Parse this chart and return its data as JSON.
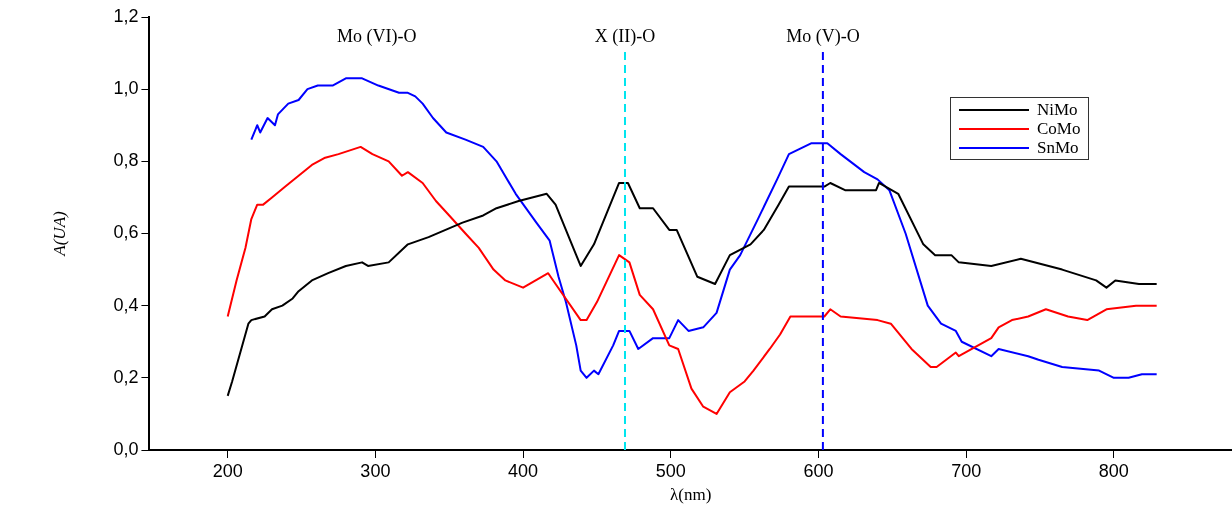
{
  "chart_data": {
    "type": "line",
    "xlabel": "λ(nm)",
    "ylabel": "A(UA)",
    "xlim": [
      147,
      880
    ],
    "xticks": [
      200,
      300,
      400,
      500,
      600,
      700,
      800
    ],
    "ylim": [
      0,
      1.2
    ],
    "yticks": [
      {
        "value": 0,
        "label": "0,0"
      },
      {
        "value": 0.2,
        "label": "0,2"
      },
      {
        "value": 0.4,
        "label": "0,4"
      },
      {
        "value": 0.6,
        "label": "0,6"
      },
      {
        "value": 0.8,
        "label": "0,8"
      },
      {
        "value": 1.0,
        "label": "1,0"
      },
      {
        "value": 1.2,
        "label": "1,2"
      }
    ],
    "grid": false,
    "legend": "top right",
    "marker": "none",
    "line_style": "solid",
    "series": [
      {
        "name": "NiMo",
        "color": "#000000",
        "x": [
          200,
          203,
          214,
          216,
          225,
          230,
          237,
          244,
          248,
          257,
          268,
          280,
          291,
          295,
          309,
          322,
          336,
          359,
          373,
          382,
          397,
          416,
          422,
          439,
          448,
          465,
          471,
          479,
          488,
          499,
          504,
          518,
          530,
          540,
          554,
          563,
          573,
          580,
          604,
          608,
          618,
          639,
          641,
          654,
          671,
          679,
          690,
          695,
          717,
          737,
          765,
          788,
          795,
          801,
          817,
          829
        ],
        "values": [
          0.15,
          0.19,
          0.35,
          0.36,
          0.37,
          0.39,
          0.4,
          0.42,
          0.44,
          0.47,
          0.49,
          0.51,
          0.52,
          0.51,
          0.52,
          0.57,
          0.59,
          0.63,
          0.65,
          0.67,
          0.69,
          0.71,
          0.68,
          0.51,
          0.57,
          0.74,
          0.74,
          0.67,
          0.67,
          0.61,
          0.61,
          0.48,
          0.46,
          0.54,
          0.57,
          0.61,
          0.68,
          0.73,
          0.73,
          0.74,
          0.72,
          0.72,
          0.74,
          0.71,
          0.57,
          0.54,
          0.54,
          0.52,
          0.51,
          0.53,
          0.5,
          0.47,
          0.45,
          0.47,
          0.46,
          0.46
        ]
      },
      {
        "name": "CoMo",
        "color": "#ff0000",
        "x": [
          200,
          206,
          212,
          216,
          220,
          224,
          230,
          239,
          248,
          257,
          266,
          275,
          290,
          298,
          309,
          318,
          322,
          332,
          341,
          350,
          361,
          370,
          380,
          388,
          400,
          417,
          422,
          439,
          443,
          450,
          465,
          472,
          479,
          488,
          499,
          505,
          514,
          522,
          531,
          540,
          550,
          556,
          567,
          574,
          581,
          604,
          608,
          615,
          640,
          649,
          663,
          676,
          680,
          693,
          695,
          717,
          722,
          731,
          742,
          754,
          769,
          782,
          795,
          815,
          829
        ],
        "values": [
          0.37,
          0.47,
          0.56,
          0.64,
          0.68,
          0.68,
          0.7,
          0.73,
          0.76,
          0.79,
          0.81,
          0.82,
          0.84,
          0.82,
          0.8,
          0.76,
          0.77,
          0.74,
          0.69,
          0.65,
          0.6,
          0.56,
          0.5,
          0.47,
          0.45,
          0.49,
          0.46,
          0.36,
          0.36,
          0.41,
          0.54,
          0.52,
          0.43,
          0.39,
          0.29,
          0.28,
          0.17,
          0.12,
          0.1,
          0.16,
          0.19,
          0.22,
          0.28,
          0.32,
          0.37,
          0.37,
          0.39,
          0.37,
          0.36,
          0.35,
          0.28,
          0.23,
          0.23,
          0.27,
          0.26,
          0.31,
          0.34,
          0.36,
          0.37,
          0.39,
          0.37,
          0.36,
          0.39,
          0.4,
          0.4
        ]
      },
      {
        "name": "SnMo",
        "color": "#0000ff",
        "x": [
          216,
          220,
          222,
          227,
          232,
          234,
          241,
          248,
          254,
          261,
          271,
          280,
          291,
          302,
          316,
          322,
          327,
          332,
          339,
          348,
          361,
          373,
          382,
          395,
          409,
          418,
          424,
          429,
          436,
          439,
          443,
          448,
          451,
          461,
          465,
          472,
          478,
          488,
          499,
          505,
          512,
          522,
          531,
          540,
          547,
          559,
          572,
          580,
          595,
          606,
          615,
          631,
          640,
          648,
          659,
          674,
          683,
          693,
          697,
          717,
          722,
          742,
          749,
          765,
          790,
          800,
          810,
          819,
          829
        ],
        "values": [
          0.86,
          0.9,
          0.88,
          0.92,
          0.9,
          0.93,
          0.96,
          0.97,
          1.0,
          1.01,
          1.01,
          1.03,
          1.03,
          1.01,
          0.99,
          0.99,
          0.98,
          0.96,
          0.92,
          0.88,
          0.86,
          0.84,
          0.8,
          0.71,
          0.63,
          0.58,
          0.48,
          0.41,
          0.29,
          0.22,
          0.2,
          0.22,
          0.21,
          0.29,
          0.33,
          0.33,
          0.28,
          0.31,
          0.31,
          0.36,
          0.33,
          0.34,
          0.38,
          0.5,
          0.54,
          0.64,
          0.75,
          0.82,
          0.85,
          0.85,
          0.82,
          0.77,
          0.75,
          0.72,
          0.6,
          0.4,
          0.35,
          0.33,
          0.3,
          0.26,
          0.28,
          0.26,
          0.25,
          0.23,
          0.22,
          0.2,
          0.2,
          0.21,
          0.21
        ]
      }
    ],
    "ref_lines": [
      {
        "axis": "x",
        "value": 469,
        "label": "X (II)-O",
        "color": "#00e5ee",
        "line_style": "dashed"
      },
      {
        "axis": "x",
        "value": 603,
        "label": "Mo (V)-O",
        "color": "#0000ff",
        "line_style": "dashed"
      }
    ],
    "annotations": [
      "Mo (VI)-O"
    ]
  }
}
